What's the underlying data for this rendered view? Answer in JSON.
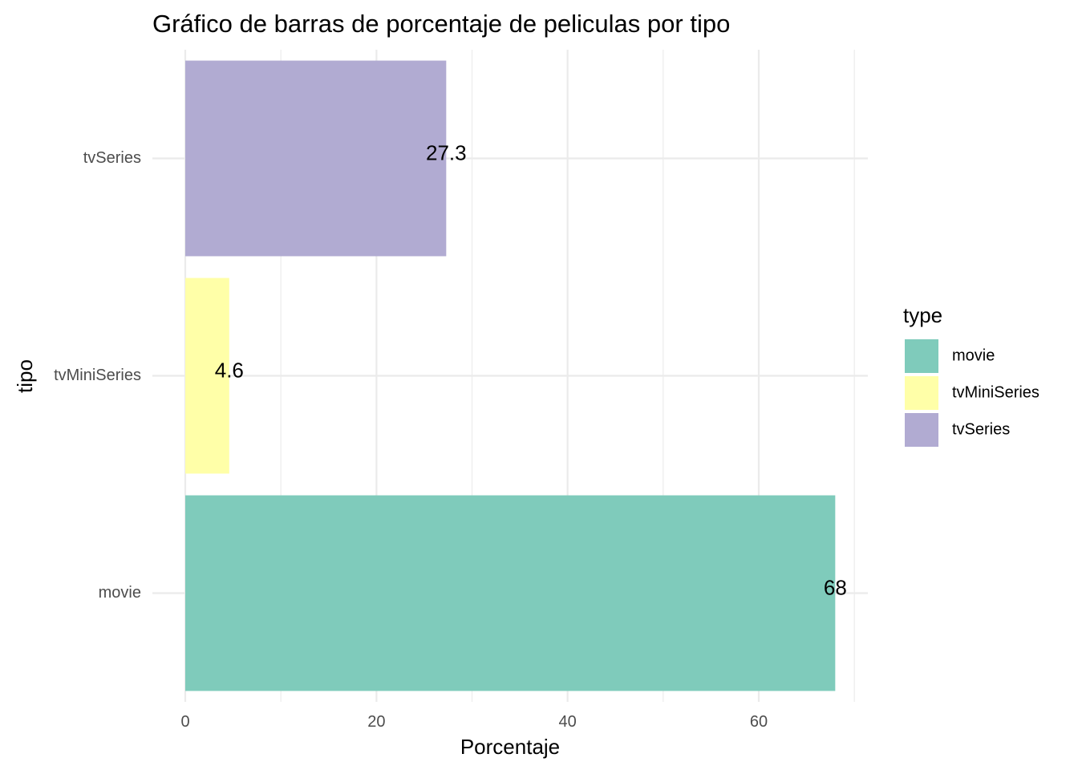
{
  "chart_data": {
    "type": "bar",
    "orientation": "horizontal",
    "title": "Gráfico de barras de porcentaje de peliculas por tipo",
    "xlabel": "Porcentaje",
    "ylabel": "tipo",
    "categories": [
      "movie",
      "tvMiniSeries",
      "tvSeries"
    ],
    "values": [
      68,
      4.6,
      27.3
    ],
    "data_labels": [
      "68",
      "4.6",
      "27.3"
    ],
    "colors": [
      "#7fcbbb",
      "#ffffa8",
      "#b1abd2"
    ],
    "xlim": [
      0,
      71.4
    ],
    "x_ticks": [
      0,
      20,
      40,
      60
    ],
    "x_tick_labels": [
      "0",
      "20",
      "40",
      "60"
    ],
    "grid": true,
    "legend": {
      "title": "type",
      "position": "right",
      "entries": [
        "movie",
        "tvMiniSeries",
        "tvSeries"
      ]
    }
  }
}
